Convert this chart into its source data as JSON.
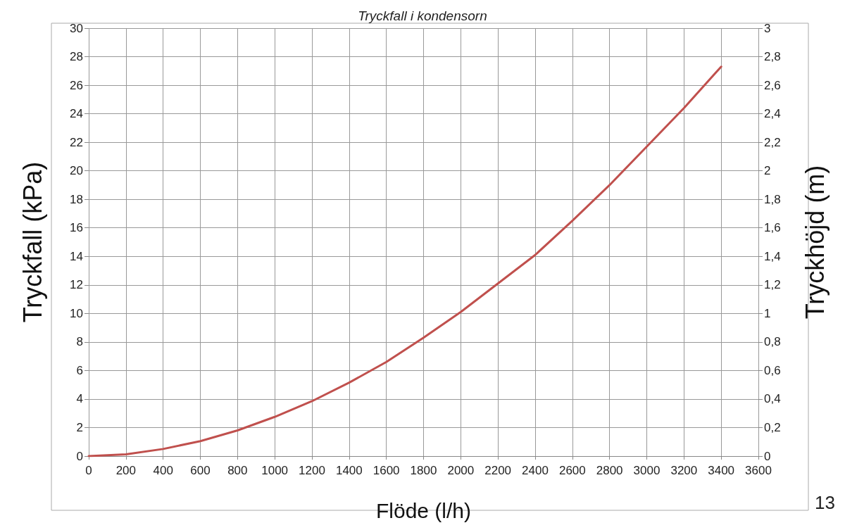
{
  "chart_data": {
    "type": "line",
    "title": "Tryckfall i kondensorn",
    "xlabel": "Flöde (l/h)",
    "ylabel": "Tryckfall (kPa)",
    "y2label": "Tryckhöjd (m)",
    "x": [
      0,
      200,
      400,
      600,
      800,
      1000,
      1200,
      1400,
      1600,
      1800,
      2000,
      2200,
      2400,
      2600,
      2800,
      3000,
      3200,
      3400
    ],
    "series": [
      {
        "color": "#c0504d",
        "values": [
          0,
          0.12,
          0.5,
          1.05,
          1.8,
          2.75,
          3.85,
          5.15,
          6.6,
          8.3,
          10.1,
          12.1,
          14.1,
          16.5,
          19.0,
          21.7,
          24.4,
          27.3
        ]
      }
    ],
    "xlim": [
      0,
      3600
    ],
    "xticks": [
      0,
      200,
      400,
      600,
      800,
      1000,
      1200,
      1400,
      1600,
      1800,
      2000,
      2200,
      2400,
      2600,
      2800,
      3000,
      3200,
      3400,
      3600
    ],
    "ylim": [
      0,
      30
    ],
    "yticks": [
      0,
      2,
      4,
      6,
      8,
      10,
      12,
      14,
      16,
      18,
      20,
      22,
      24,
      26,
      28,
      30
    ],
    "y2lim": [
      0,
      3
    ],
    "y2ticks": [
      0,
      {
        "value": 0.2,
        "label": "0,2"
      },
      {
        "value": 0.4,
        "label": "0,4"
      },
      {
        "value": 0.6,
        "label": "0,6"
      },
      {
        "value": 0.8,
        "label": "0,8"
      },
      1,
      {
        "value": 1.2,
        "label": "1,2"
      },
      {
        "value": 1.4,
        "label": "1,4"
      },
      {
        "value": 1.6,
        "label": "1,6"
      },
      {
        "value": 1.8,
        "label": "1,8"
      },
      2,
      {
        "value": 2.2,
        "label": "2,2"
      },
      {
        "value": 2.4,
        "label": "2,4"
      },
      {
        "value": 2.6,
        "label": "2,6"
      },
      {
        "value": 2.8,
        "label": "2,8"
      },
      3
    ],
    "grid": true,
    "marker": "none",
    "line_style": "solid",
    "annotations": [
      "13"
    ]
  }
}
